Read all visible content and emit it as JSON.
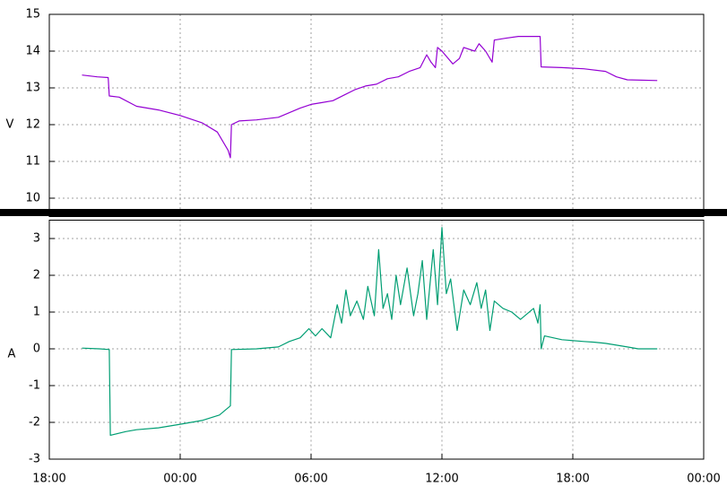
{
  "chart_data": [
    {
      "type": "line",
      "ylabel": "V",
      "color": "#9400d3",
      "grid": true,
      "xlim": [
        18,
        48
      ],
      "ylim": [
        9.5,
        15
      ],
      "yticks": [
        10,
        11,
        12,
        13,
        14,
        15
      ],
      "x": [
        19.5,
        20.2,
        20.7,
        20.75,
        21.2,
        22,
        23,
        24,
        25,
        25.7,
        26.2,
        26.3,
        26.35,
        26.7,
        27.5,
        28.5,
        29.5,
        30,
        30.5,
        31,
        31.5,
        32,
        32.5,
        33,
        33.5,
        34,
        34.5,
        35,
        35.3,
        35.5,
        35.7,
        35.8,
        36,
        36.5,
        36.8,
        37,
        37.5,
        37.7,
        38,
        38.3,
        38.4,
        38.9,
        39.5,
        40,
        40.5,
        40.55,
        41.5,
        42.5,
        43.5,
        44,
        44.5,
        45.87
      ],
      "values": [
        13.35,
        13.3,
        13.28,
        12.78,
        12.75,
        12.5,
        12.4,
        12.25,
        12.05,
        11.8,
        11.3,
        11.1,
        12.0,
        12.1,
        12.13,
        12.2,
        12.45,
        12.55,
        12.6,
        12.65,
        12.8,
        12.95,
        13.05,
        13.1,
        13.25,
        13.3,
        13.45,
        13.55,
        13.9,
        13.7,
        13.55,
        14.1,
        14.0,
        13.65,
        13.8,
        14.1,
        14.0,
        14.2,
        14.0,
        13.7,
        14.3,
        14.35,
        14.4,
        14.4,
        14.4,
        13.57,
        13.55,
        13.52,
        13.45,
        13.3,
        13.22,
        13.2
      ]
    },
    {
      "type": "line",
      "ylabel": "A",
      "color": "#009e73",
      "grid": true,
      "xlim": [
        18,
        48
      ],
      "ylim": [
        -3,
        3.5
      ],
      "yticks": [
        -3,
        -2,
        -1,
        0,
        1,
        2,
        3
      ],
      "xticks": [
        {
          "value": 18,
          "label": "18:00"
        },
        {
          "value": 24,
          "label": "00:00"
        },
        {
          "value": 30,
          "label": "06:00"
        },
        {
          "value": 36,
          "label": "12:00"
        },
        {
          "value": 42,
          "label": "18:00"
        },
        {
          "value": 48,
          "label": "00:00"
        }
      ],
      "x": [
        19.5,
        20.3,
        20.75,
        20.8,
        21.5,
        22,
        23,
        24,
        25,
        25.8,
        26.3,
        26.35,
        27.5,
        28.5,
        29,
        29.5,
        29.9,
        30.2,
        30.5,
        30.9,
        31.2,
        31.4,
        31.6,
        31.8,
        32.1,
        32.4,
        32.6,
        32.9,
        33.1,
        33.3,
        33.5,
        33.7,
        33.9,
        34.1,
        34.4,
        34.7,
        34.9,
        35.1,
        35.3,
        35.6,
        35.8,
        36,
        36.2,
        36.4,
        36.7,
        37,
        37.3,
        37.6,
        37.8,
        38,
        38.2,
        38.4,
        38.8,
        39.2,
        39.6,
        40.2,
        40.4,
        40.5,
        40.55,
        40.7,
        41.5,
        42.5,
        43,
        43.5,
        44,
        44.5,
        45,
        45.87
      ],
      "values": [
        0.02,
        0.0,
        -0.02,
        -2.35,
        -2.25,
        -2.2,
        -2.15,
        -2.05,
        -1.95,
        -1.8,
        -1.55,
        -0.02,
        0,
        0.05,
        0.2,
        0.3,
        0.55,
        0.35,
        0.55,
        0.3,
        1.2,
        0.7,
        1.6,
        0.9,
        1.3,
        0.8,
        1.7,
        0.9,
        2.7,
        1.1,
        1.5,
        0.8,
        2.0,
        1.2,
        2.2,
        0.9,
        1.5,
        2.4,
        0.8,
        2.7,
        1.2,
        3.3,
        1.5,
        1.9,
        0.5,
        1.6,
        1.2,
        1.8,
        1.1,
        1.6,
        0.5,
        1.3,
        1.1,
        1.0,
        0.8,
        1.1,
        0.7,
        1.2,
        0.0,
        0.35,
        0.25,
        0.2,
        0.18,
        0.15,
        0.1,
        0.05,
        0.0,
        0.0
      ]
    }
  ]
}
